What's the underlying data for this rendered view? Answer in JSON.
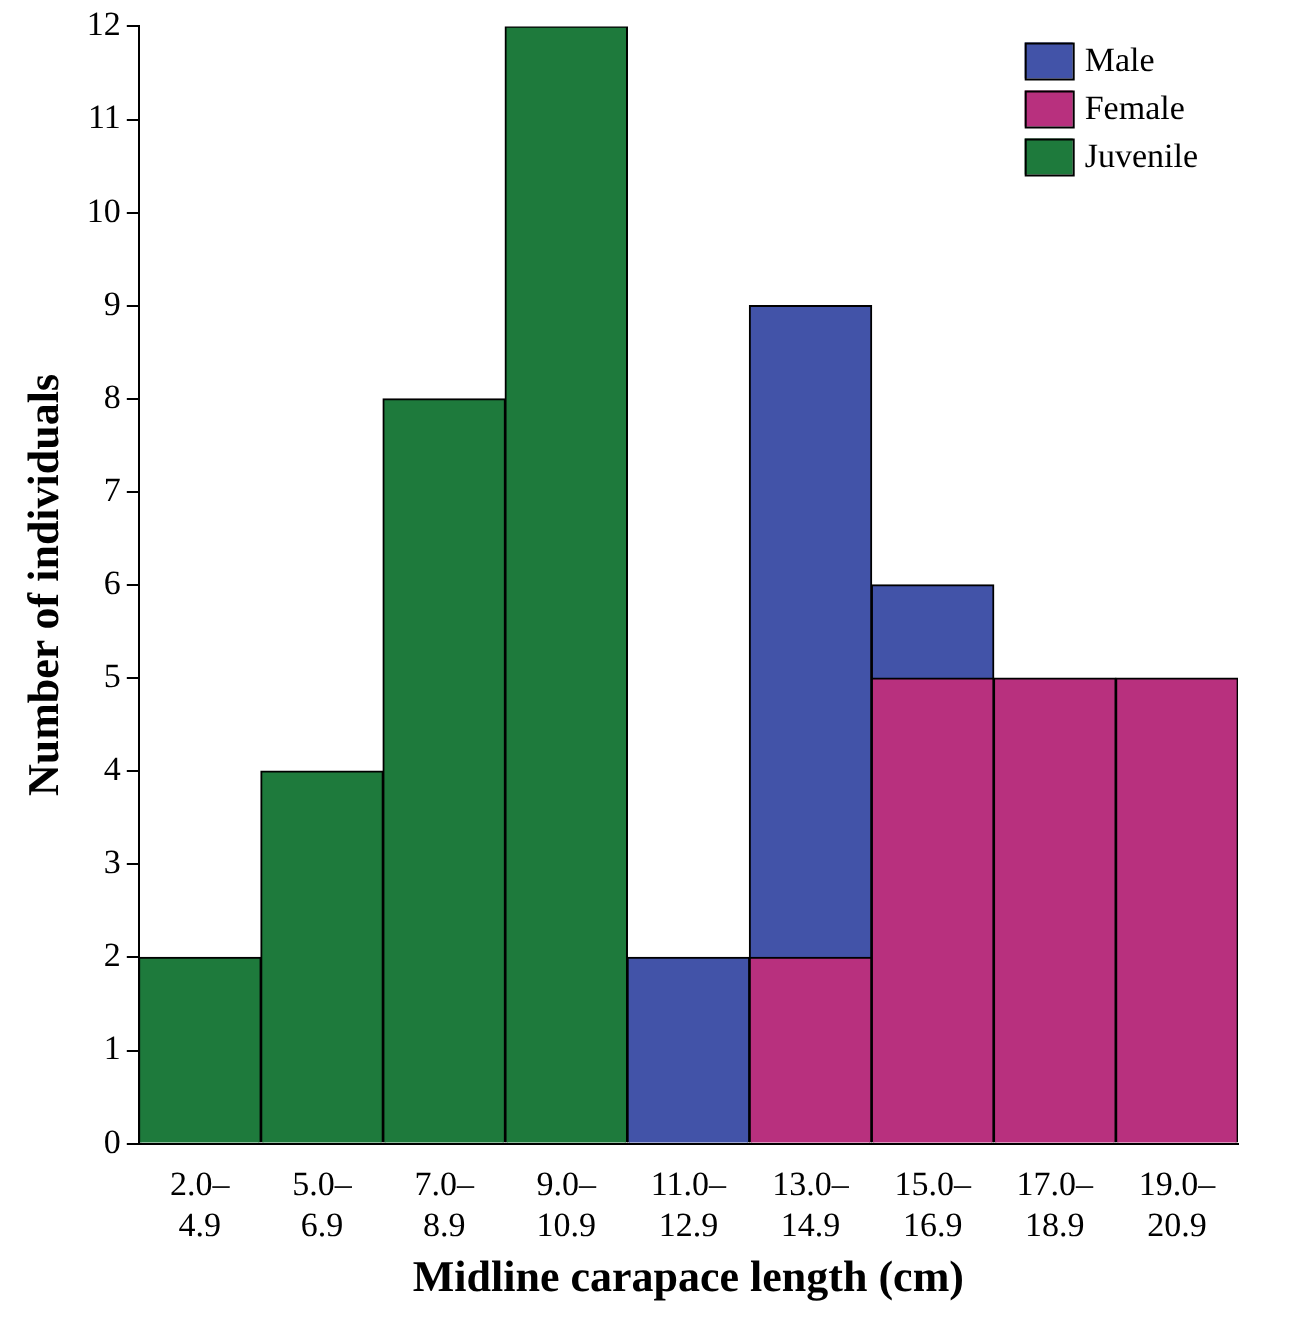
{
  "chart_data": {
    "type": "bar",
    "stacked": true,
    "xlabel": "Midline carapace length (cm)",
    "ylabel": "Number of individuals",
    "categories": [
      "2.0–4.9",
      "5.0–6.9",
      "7.0–8.9",
      "9.0–10.9",
      "11.0–12.9",
      "13.0–14.9",
      "15.0–16.9",
      "17.0–18.9",
      "19.0–20.9"
    ],
    "series": [
      {
        "name": "Juvenile",
        "color": "#1e7a3c",
        "values": [
          2,
          4,
          8,
          12,
          null,
          null,
          null,
          null,
          null
        ]
      },
      {
        "name": "Female",
        "color": "#b8307e",
        "values": [
          null,
          null,
          null,
          null,
          null,
          2,
          5,
          5,
          5
        ]
      },
      {
        "name": "Male",
        "color": "#4253a8",
        "values": [
          null,
          null,
          null,
          null,
          2,
          7,
          1,
          null,
          null
        ]
      }
    ],
    "ylim": [
      0,
      12
    ],
    "yticks": [
      0,
      1,
      2,
      3,
      4,
      5,
      6,
      7,
      8,
      9,
      10,
      11,
      12
    ],
    "grid": false,
    "legend": "top right"
  }
}
